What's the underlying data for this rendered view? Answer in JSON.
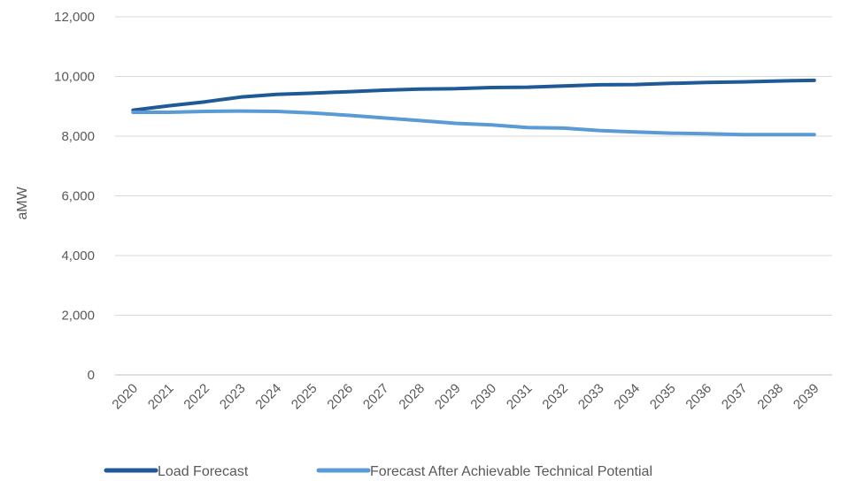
{
  "chart_data": {
    "type": "line",
    "title": "",
    "xlabel": "",
    "ylabel": "aMW",
    "ylim": [
      0,
      12000
    ],
    "yticks": [
      0,
      2000,
      4000,
      6000,
      8000,
      10000,
      12000
    ],
    "ytick_labels": [
      "0",
      "2,000",
      "4,000",
      "6,000",
      "8,000",
      "10,000",
      "12,000"
    ],
    "grid": true,
    "legend": "bottom",
    "x": [
      "2020",
      "2021",
      "2022",
      "2023",
      "2024",
      "2025",
      "2026",
      "2027",
      "2028",
      "2029",
      "2030",
      "2031",
      "2032",
      "2033",
      "2034",
      "2035",
      "2036",
      "2037",
      "2038",
      "2039"
    ],
    "series": [
      {
        "name": "Load Forecast",
        "color": "#1f5a96",
        "values": [
          8870,
          9020,
          9150,
          9310,
          9400,
          9440,
          9490,
          9540,
          9580,
          9590,
          9630,
          9640,
          9680,
          9720,
          9730,
          9770,
          9800,
          9820,
          9850,
          9870
        ]
      },
      {
        "name": "Forecast After Achievable Technical Potential",
        "color": "#5b9bd5",
        "values": [
          8800,
          8800,
          8830,
          8840,
          8830,
          8780,
          8700,
          8610,
          8520,
          8430,
          8380,
          8290,
          8270,
          8190,
          8140,
          8100,
          8080,
          8050,
          8050,
          8050
        ]
      }
    ]
  }
}
